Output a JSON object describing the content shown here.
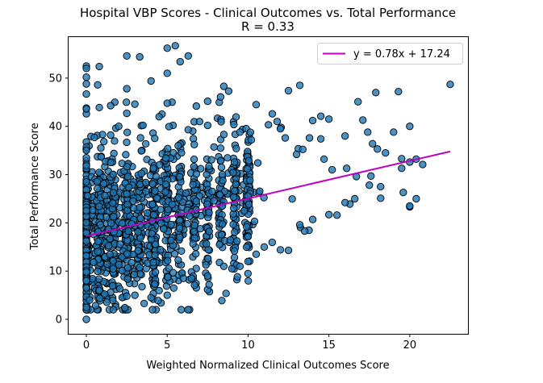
{
  "chart_data": {
    "type": "scatter",
    "title": "Hospital VBP Scores - Clinical Outcomes vs. Total Performance",
    "subtitle": "R = 0.33",
    "xlabel": "Weighted Normalized Clinical Outcomes Score",
    "ylabel": "Total Performance Score",
    "xlim": [
      -1.1,
      23.6
    ],
    "ylim": [
      -3,
      58.5
    ],
    "xticks": [
      0,
      5,
      10,
      15,
      20
    ],
    "yticks": [
      0,
      10,
      20,
      30,
      40,
      50
    ],
    "grid": false,
    "legend_position": "top-right",
    "colors": {
      "points": "#1f77b4",
      "point_edge": "#000000",
      "fit_line": "#bf00bf"
    },
    "fit": {
      "label": "y = 0.78x + 17.24",
      "slope": 0.78,
      "intercept": 17.24,
      "x_range": [
        0,
        22.5
      ]
    },
    "point_cloud": {
      "count": 1500,
      "x_range": [
        0,
        22.5
      ],
      "y_range": [
        0,
        57
      ]
    },
    "points": [
      [
        0,
        0
      ],
      [
        0,
        2.5
      ],
      [
        0,
        52.5
      ],
      [
        0,
        52
      ],
      [
        0,
        50.2
      ],
      [
        0,
        48.8
      ],
      [
        0,
        46.7
      ],
      [
        0,
        43.6
      ],
      [
        0,
        35.7
      ],
      [
        0,
        35
      ],
      [
        0,
        33.5
      ],
      [
        0,
        31.8
      ],
      [
        0.7,
        48.6
      ],
      [
        0.8,
        52.4
      ],
      [
        0.8,
        43.9
      ],
      [
        1.5,
        44.3
      ],
      [
        2.5,
        54.6
      ],
      [
        3.3,
        54.4
      ],
      [
        2.5,
        47.8
      ],
      [
        4,
        49.4
      ],
      [
        5,
        56.2
      ],
      [
        5.5,
        56.7
      ],
      [
        5,
        51
      ],
      [
        6.3,
        54.6
      ],
      [
        5.8,
        53.4
      ],
      [
        7.5,
        45.2
      ],
      [
        8.3,
        46.1
      ],
      [
        8.8,
        47.3
      ],
      [
        8.5,
        48.3
      ],
      [
        10.5,
        44.5
      ],
      [
        12.5,
        47.4
      ],
      [
        13.2,
        48.5
      ],
      [
        14,
        41.2
      ],
      [
        14.5,
        42.1
      ],
      [
        15,
        41.5
      ],
      [
        16,
        38
      ],
      [
        16.8,
        45.1
      ],
      [
        17.1,
        41.3
      ],
      [
        17.4,
        38.8
      ],
      [
        17.7,
        36.4
      ],
      [
        18,
        35.3
      ],
      [
        18.5,
        34.5
      ],
      [
        17.9,
        47
      ],
      [
        19.3,
        47.2
      ],
      [
        19.5,
        33.3
      ],
      [
        19.5,
        31.3
      ],
      [
        20,
        40
      ],
      [
        19,
        38.8
      ],
      [
        20,
        32.6
      ],
      [
        20.4,
        33.2
      ],
      [
        20.8,
        32.1
      ],
      [
        22.5,
        48.7
      ],
      [
        19.6,
        26.3
      ],
      [
        20,
        23.3
      ],
      [
        20.4,
        25
      ],
      [
        18.2,
        27.5
      ],
      [
        18.2,
        25.1
      ],
      [
        17.5,
        27.8
      ],
      [
        17.6,
        29.7
      ],
      [
        16.7,
        29.6
      ],
      [
        16.6,
        25
      ],
      [
        16.3,
        23.9
      ],
      [
        16,
        24.2
      ],
      [
        15.5,
        21.6
      ],
      [
        15,
        21.7
      ],
      [
        14,
        20.7
      ],
      [
        13.2,
        19.6
      ],
      [
        13.5,
        18.3
      ],
      [
        12.5,
        14.3
      ],
      [
        12,
        14.4
      ],
      [
        11,
        15
      ],
      [
        10.5,
        13.5
      ],
      [
        10,
        12
      ],
      [
        9.5,
        11
      ],
      [
        9,
        10.5
      ],
      [
        8.5,
        11
      ],
      [
        7.5,
        9
      ],
      [
        6.5,
        8.5
      ],
      [
        6,
        8.5
      ],
      [
        5,
        5
      ],
      [
        4,
        4.5
      ],
      [
        3,
        5
      ],
      [
        2.5,
        4.8
      ],
      [
        1.5,
        5.6
      ],
      [
        0.8,
        6
      ],
      [
        0.2,
        4
      ],
      [
        0,
        6.5
      ],
      [
        0,
        8
      ],
      [
        0,
        9.8
      ],
      [
        15.2,
        31
      ],
      [
        14.7,
        33.2
      ],
      [
        16.1,
        31.3
      ],
      [
        14.5,
        37.4
      ],
      [
        13.8,
        37.6
      ],
      [
        13,
        34.2
      ],
      [
        12.3,
        37.6
      ],
      [
        12,
        39.5
      ],
      [
        11.8,
        41
      ],
      [
        11.5,
        42.6
      ],
      [
        10.2,
        37.2
      ],
      [
        9.5,
        38.8
      ],
      [
        7.5,
        40.2
      ],
      [
        7,
        41
      ],
      [
        6.3,
        39.3
      ],
      [
        6.8,
        44.2
      ],
      [
        5,
        44.8
      ],
      [
        4.5,
        42
      ],
      [
        3.5,
        40.2
      ],
      [
        3,
        44.6
      ],
      [
        2.5,
        42.7
      ],
      [
        2,
        40
      ],
      [
        1.5,
        38.2
      ],
      [
        1,
        38.3
      ],
      [
        0.5,
        37.7
      ],
      [
        20,
        23.5
      ]
    ]
  }
}
